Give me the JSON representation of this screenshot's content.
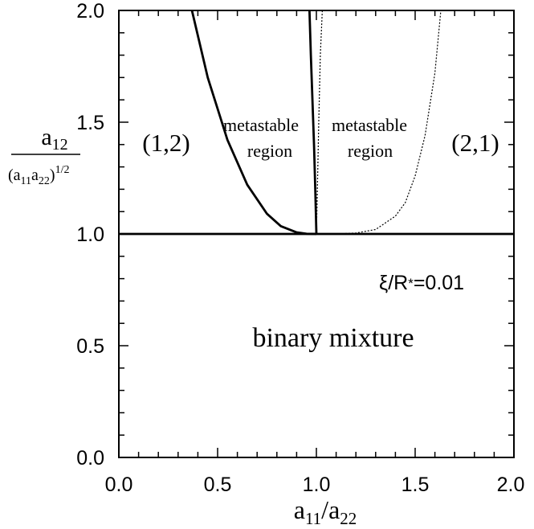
{
  "chart_data": {
    "type": "line",
    "xlim": [
      0.0,
      2.0
    ],
    "ylim": [
      0.0,
      2.0
    ],
    "x_ticks": [
      "0.0",
      "0.5",
      "1.0",
      "1.5",
      "2.0"
    ],
    "y_ticks": [
      "0.0",
      "0.5",
      "1.0",
      "1.5",
      "2.0"
    ],
    "xlabel": {
      "a1": "a",
      "sub1": "11",
      "slash": "/a",
      "sub2": "22"
    },
    "ylabel": {
      "num": "a",
      "num_sub": "12",
      "den_open": "(a",
      "den_sub1": "11",
      "den_mid": "a",
      "den_sub2": "22",
      "den_close": ")",
      "den_sup": "1/2"
    },
    "grid": false,
    "series": [
      {
        "style": "solid-thick",
        "x": [
          0.37,
          0.45,
          0.55,
          0.65,
          0.75,
          0.82,
          0.9,
          0.95,
          1.0
        ],
        "y": [
          2.0,
          1.7,
          1.42,
          1.22,
          1.09,
          1.035,
          1.007,
          1.001,
          1.0
        ]
      },
      {
        "style": "solid-thick",
        "x": [
          0.965,
          0.972,
          0.98,
          0.988,
          0.995,
          1.0
        ],
        "y": [
          2.0,
          1.8,
          1.6,
          1.4,
          1.18,
          1.0
        ]
      },
      {
        "style": "dotted-thin",
        "x": [
          1.0,
          1.005,
          1.012,
          1.02,
          1.03
        ],
        "y": [
          1.0,
          1.2,
          1.5,
          1.8,
          2.0
        ]
      },
      {
        "style": "dotted-thin",
        "x": [
          1.0,
          1.1,
          1.2,
          1.3,
          1.4,
          1.45,
          1.5,
          1.55,
          1.6,
          1.63
        ],
        "y": [
          1.0,
          1.0,
          1.004,
          1.02,
          1.08,
          1.14,
          1.26,
          1.44,
          1.72,
          2.0
        ]
      },
      {
        "style": "solid-thick",
        "x": [
          0.0,
          2.0
        ],
        "y": [
          1.0,
          1.0
        ]
      }
    ],
    "annotations": {
      "phase_12": "(1,2)",
      "phase_21": "(2,1)",
      "metastable_left_1": "metastable",
      "metastable_left_2": "region",
      "metastable_right_1": "metastable",
      "metastable_right_2": "region",
      "xi_label": "ξ/R",
      "xi_star": "*",
      "xi_value": "=0.01",
      "binary": "binary mixture"
    }
  }
}
